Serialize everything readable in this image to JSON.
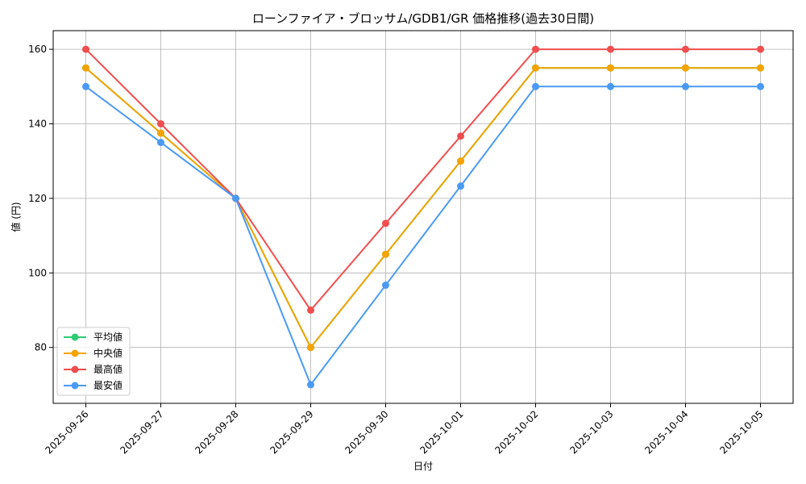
{
  "chart_data": {
    "type": "line",
    "title": "ローンファイア・ブロッサム/GDB1/GR 価格推移(過去30日間)",
    "xlabel": "日付",
    "ylabel": "値 (円)",
    "categories": [
      "2025-09-26",
      "2025-09-27",
      "2025-09-28",
      "2025-09-29",
      "2025-09-30",
      "2025-10-01",
      "2025-10-02",
      "2025-10-03",
      "2025-10-04",
      "2025-10-05"
    ],
    "ylim": [
      65,
      165
    ],
    "yticks": [
      80,
      100,
      120,
      140,
      160
    ],
    "grid": true,
    "legend_position": "lower-left",
    "series": [
      {
        "name": "平均値",
        "color": "#2ecc71",
        "values": [
          155,
          137.5,
          120,
          80,
          105,
          130,
          155,
          155,
          155,
          155
        ]
      },
      {
        "name": "中央値",
        "color": "#f5a300",
        "values": [
          155,
          137.5,
          120,
          80,
          105,
          130,
          155,
          155,
          155,
          155
        ]
      },
      {
        "name": "最高値",
        "color": "#f04e4e",
        "values": [
          160,
          140,
          120,
          90,
          113.3,
          136.7,
          160,
          160,
          160,
          160
        ]
      },
      {
        "name": "最安値",
        "color": "#4a9af5",
        "values": [
          150,
          135,
          120,
          70,
          96.7,
          123.3,
          150,
          150,
          150,
          150
        ]
      }
    ]
  }
}
